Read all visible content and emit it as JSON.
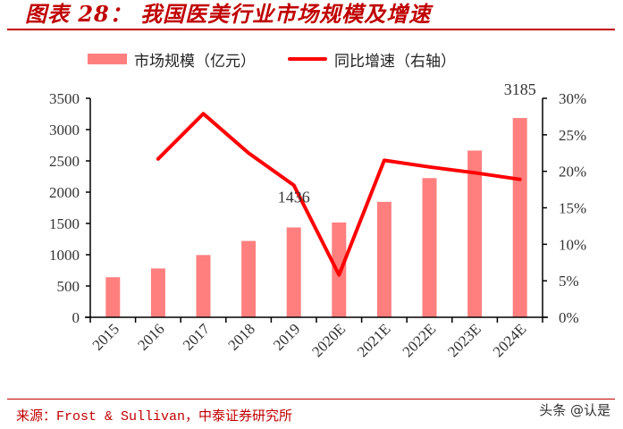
{
  "header": {
    "title": "图表 28： 我国医美行业市场规模及增速"
  },
  "legend": {
    "items": [
      {
        "label": "市场规模（亿元）",
        "type": "bar",
        "color": "#FF7F7F"
      },
      {
        "label": "同比增速（右轴）",
        "type": "line",
        "color": "#FF0000"
      }
    ]
  },
  "footer": {
    "source": "来源：Frost & Sullivan，中泰证券研究所",
    "watermark": "头条 @认是"
  },
  "colors": {
    "title": "#C00000",
    "bar": "#FF7F7F",
    "line": "#FF0000",
    "axis": "#000000"
  },
  "chart_data": {
    "type": "bar+line",
    "title": "我国医美行业市场规模及增速",
    "categories": [
      "2015",
      "2016",
      "2017",
      "2018",
      "2019",
      "2020E",
      "2021E",
      "2022E",
      "2023E",
      "2024E"
    ],
    "series": [
      {
        "name": "市场规模（亿元）",
        "type": "bar",
        "axis": "left",
        "values": [
          640,
          780,
          995,
          1220,
          1436,
          1515,
          1845,
          2225,
          2665,
          3185
        ]
      },
      {
        "name": "同比增速（右轴）",
        "type": "line",
        "axis": "right",
        "values": [
          null,
          21.7,
          27.9,
          22.5,
          18.1,
          5.8,
          21.5,
          20.6,
          19.8,
          18.9
        ],
        "unit": "%"
      }
    ],
    "data_labels": [
      {
        "category": "2019",
        "text": "1436"
      },
      {
        "category": "2024E",
        "text": "3185"
      }
    ],
    "left_axis": {
      "ylim": [
        0,
        3500
      ],
      "ticks": [
        "0",
        "500",
        "1000",
        "1500",
        "2000",
        "2500",
        "3000",
        "3500"
      ]
    },
    "right_axis": {
      "ylim": [
        0,
        30
      ],
      "ticks": [
        "0%",
        "5%",
        "10%",
        "15%",
        "20%",
        "25%",
        "30%"
      ]
    },
    "xlabel": "",
    "ylabel": "",
    "grid": false,
    "legend_position": "top"
  }
}
